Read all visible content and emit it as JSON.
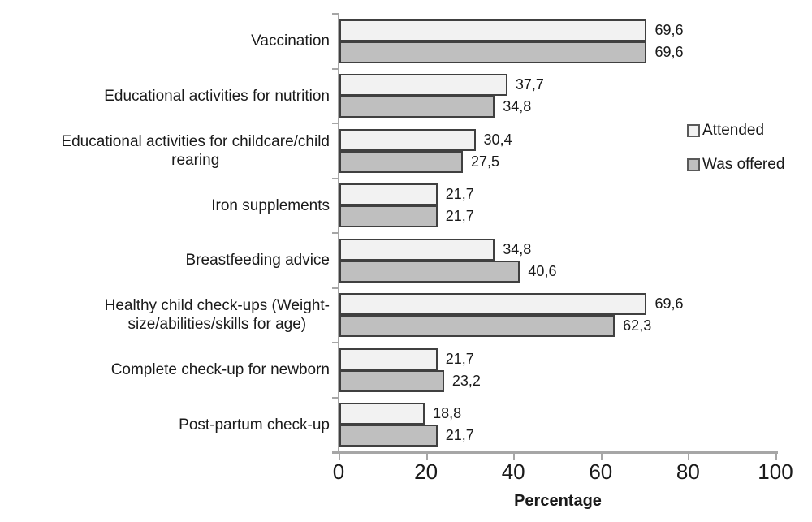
{
  "chart_data": {
    "type": "bar",
    "orientation": "horizontal",
    "title": "",
    "xlabel": "Percentage",
    "ylabel": "",
    "xlim": [
      0,
      100
    ],
    "x_ticks": [
      0,
      20,
      40,
      60,
      80,
      100
    ],
    "grid": false,
    "legend_position": "right",
    "categories": [
      {
        "label": "Vaccination",
        "lines": [
          "Vaccination"
        ]
      },
      {
        "label": "Educational activities for nutrition",
        "lines": [
          "Educational activities for nutrition"
        ]
      },
      {
        "label": "Educational activities for childcare/child rearing",
        "lines": [
          "Educational activities for childcare/child",
          "rearing"
        ]
      },
      {
        "label": "Iron supplements",
        "lines": [
          "Iron supplements"
        ]
      },
      {
        "label": "Breastfeeding advice",
        "lines": [
          "Breastfeeding advice"
        ]
      },
      {
        "label": "Healthy child check-ups (Weight-size/abilities/skills for age)",
        "lines": [
          "Healthy child check-ups  (Weight-",
          "size/abilities/skills for age)"
        ]
      },
      {
        "label": "Complete check-up for newborn",
        "lines": [
          "Complete check-up for newborn"
        ]
      },
      {
        "label": "Post-partum check-up",
        "lines": [
          "Post-partum check-up"
        ]
      }
    ],
    "series": [
      {
        "name": "Attended",
        "color": "#f2f2f2",
        "values": [
          69.6,
          37.7,
          30.4,
          21.7,
          34.8,
          69.6,
          21.7,
          18.8
        ],
        "labels": [
          "69,6",
          "37,7",
          "30,4",
          "21,7",
          "34,8",
          "69,6",
          "21,7",
          "18,8"
        ]
      },
      {
        "name": "Was offered",
        "color": "#bfbfbf",
        "values": [
          69.6,
          34.8,
          27.5,
          21.7,
          40.6,
          62.3,
          23.2,
          21.7
        ],
        "labels": [
          "69,6",
          "34,8",
          "27,5",
          "21,7",
          "40,6",
          "62,3",
          "23,2",
          "21,7"
        ]
      }
    ]
  },
  "legend": {
    "attended": "Attended",
    "was_offered": "Was offered"
  },
  "axis": {
    "xlabel": "Percentage",
    "tick_labels": [
      "0",
      "20",
      "40",
      "60",
      "80",
      "100"
    ]
  },
  "colors": {
    "attended_fill": "#f2f2f2",
    "was_offered_fill": "#bfbfbf",
    "bar_border": "#404040",
    "axis_line": "#a6a6a6",
    "text": "#1a1a1a",
    "background": "#ffffff"
  }
}
